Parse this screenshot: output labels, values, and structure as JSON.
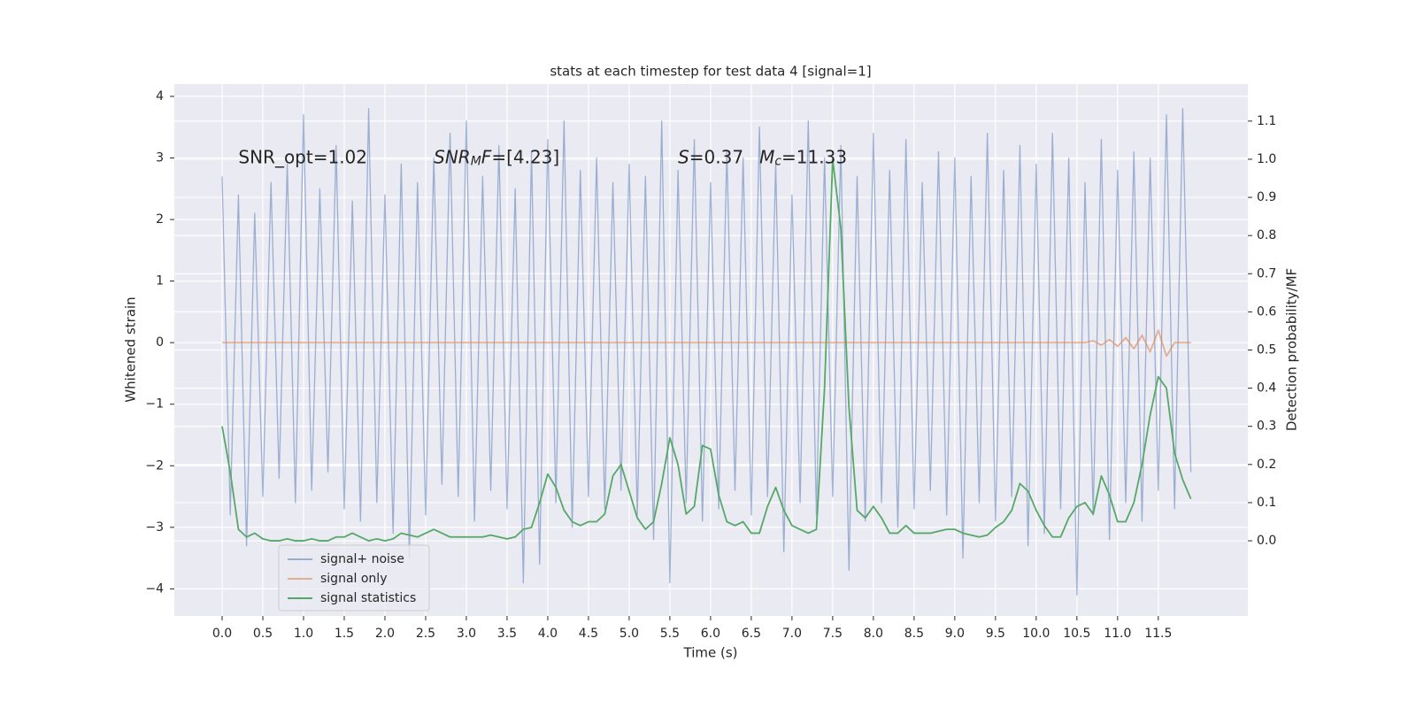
{
  "chart_data": {
    "type": "line",
    "title": "stats at each timestep for test data 4 [signal=1]",
    "xlabel": "Time (s)",
    "ylabel": "Whitened strain",
    "y2label": "Detection probability/MF",
    "xlim": [
      -0.587,
      12.6
    ],
    "ylim": [
      -4.44,
      4.2
    ],
    "y2lim": [
      -0.197,
      1.197
    ],
    "xticks": [
      {
        "value": 0,
        "label": "0.0"
      },
      0.5,
      {
        "value": 1,
        "label": "1.0"
      },
      1.5,
      {
        "value": 2,
        "label": "2.0"
      },
      2.5,
      {
        "value": 3,
        "label": "3.0"
      },
      3.5,
      {
        "value": 4,
        "label": "4.0"
      },
      4.5,
      {
        "value": 5,
        "label": "5.0"
      },
      5.5,
      {
        "value": 6,
        "label": "6.0"
      },
      6.5,
      {
        "value": 7,
        "label": "7.0"
      },
      7.5,
      {
        "value": 8,
        "label": "8.0"
      },
      8.5,
      {
        "value": 9,
        "label": "9.0"
      },
      9.5,
      {
        "value": 10,
        "label": "10.0"
      },
      10.5,
      {
        "value": 11,
        "label": "11.0"
      },
      11.5
    ],
    "yticks": [
      {
        "value": -4,
        "label": "−4"
      },
      {
        "value": -3,
        "label": "−3"
      },
      {
        "value": -2,
        "label": "−2"
      },
      {
        "value": -1,
        "label": "−1"
      },
      0,
      1,
      2,
      3,
      4
    ],
    "y2ticks": [
      {
        "value": 0,
        "label": "0.0"
      },
      0.1,
      0.2,
      0.3,
      0.4,
      0.5,
      0.6,
      0.7,
      0.8,
      0.9,
      {
        "value": 1,
        "label": "1.0"
      },
      1.1
    ],
    "grid": true,
    "legend_loc": "lower left",
    "x": [
      0,
      0.1,
      0.2,
      0.3,
      0.4,
      0.5,
      0.6,
      0.7,
      0.8,
      0.9,
      1,
      1.1,
      1.2,
      1.3,
      1.4,
      1.5,
      1.6,
      1.7,
      1.8,
      1.9,
      2,
      2.1,
      2.2,
      2.3,
      2.4,
      2.5,
      2.6,
      2.7,
      2.8,
      2.9,
      3,
      3.1,
      3.2,
      3.3,
      3.4,
      3.5,
      3.6,
      3.7,
      3.8,
      3.9,
      4,
      4.1,
      4.2,
      4.3,
      4.4,
      4.5,
      4.6,
      4.7,
      4.8,
      4.9,
      5,
      5.1,
      5.2,
      5.3,
      5.4,
      5.5,
      5.6,
      5.7,
      5.8,
      5.9,
      6,
      6.1,
      6.2,
      6.3,
      6.4,
      6.5,
      6.6,
      6.7,
      6.8,
      6.9,
      7,
      7.1,
      7.2,
      7.3,
      7.4,
      7.5,
      7.6,
      7.7,
      7.8,
      7.9,
      8,
      8.1,
      8.2,
      8.3,
      8.4,
      8.5,
      8.6,
      8.7,
      8.8,
      8.9,
      9,
      9.1,
      9.2,
      9.3,
      9.4,
      9.5,
      9.6,
      9.7,
      9.8,
      9.9,
      10,
      10.1,
      10.2,
      10.3,
      10.4,
      10.5,
      10.6,
      10.7,
      10.8,
      10.9,
      11,
      11.1,
      11.2,
      11.3,
      11.4,
      11.5,
      11.6,
      11.7,
      11.8,
      11.9
    ],
    "series": [
      {
        "name": "signal+ noise",
        "color": "#4c72b0",
        "opacity": 0.5,
        "values": [
          2.7,
          -2.8,
          2.4,
          -3.3,
          2.1,
          -2.5,
          2.6,
          -2.2,
          2.9,
          -2.6,
          3.7,
          -2.4,
          2.5,
          -2.1,
          3.2,
          -2.7,
          2.3,
          -2.9,
          3.8,
          -2.6,
          2.4,
          -3.1,
          2.9,
          -3.5,
          2.6,
          -2.8,
          3.0,
          -2.3,
          3.4,
          -2.5,
          3.6,
          -2.9,
          2.7,
          -2.4,
          3.2,
          -2.7,
          2.5,
          -3.9,
          3.1,
          -3.6,
          3.3,
          -2.6,
          3.6,
          -3.0,
          2.8,
          -2.5,
          3.0,
          -2.7,
          2.6,
          -2.4,
          2.9,
          -2.8,
          2.7,
          -3.2,
          3.6,
          -3.9,
          2.8,
          -2.6,
          3.3,
          -2.9,
          2.6,
          -2.7,
          3.1,
          -2.4,
          3.0,
          -2.8,
          3.5,
          -2.5,
          2.9,
          -3.4,
          2.4,
          -2.6,
          3.6,
          -2.8,
          3.0,
          -2.5,
          3.2,
          -3.7,
          2.7,
          -2.9,
          3.4,
          -2.6,
          2.8,
          -3.0,
          3.3,
          -2.7,
          2.6,
          -2.4,
          3.1,
          -2.8,
          3.0,
          -3.5,
          2.7,
          -2.6,
          3.4,
          -2.9,
          2.8,
          -2.5,
          3.2,
          -3.3,
          2.9,
          -3.1,
          3.4,
          -2.7,
          3.0,
          -4.1,
          2.6,
          -2.8,
          3.3,
          -3.2,
          2.8,
          -2.6,
          3.1,
          -2.9,
          3.0,
          -2.4,
          3.7,
          -2.7,
          3.8,
          -2.1
        ]
      },
      {
        "name": "signal only",
        "color": "#dd8452",
        "opacity": 0.6,
        "values": [
          0,
          0,
          0,
          0,
          0,
          0,
          0,
          0,
          0,
          0,
          0,
          0,
          0,
          0,
          0,
          0,
          0,
          0,
          0,
          0,
          0,
          0,
          0,
          0,
          0,
          0,
          0,
          0,
          0,
          0,
          0,
          0,
          0,
          0,
          0,
          0,
          0,
          0,
          0,
          0,
          0,
          0,
          0,
          0,
          0,
          0,
          0,
          0,
          0,
          0,
          0,
          0,
          0,
          0,
          0,
          0,
          0,
          0,
          0,
          0,
          0,
          0,
          0,
          0,
          0,
          0,
          0,
          0,
          0,
          0,
          0,
          0,
          0,
          0,
          0,
          0,
          0,
          0,
          0,
          0,
          0,
          0,
          0,
          0,
          0,
          0,
          0,
          0,
          0,
          0,
          0,
          0,
          0,
          0,
          0,
          0,
          0,
          0,
          0,
          0,
          0,
          0,
          0,
          0,
          0,
          0,
          0,
          0.03,
          -0.04,
          0.05,
          -0.06,
          0.08,
          -0.1,
          0.12,
          -0.15,
          0.2,
          -0.22,
          0,
          0,
          0
        ]
      },
      {
        "name": "signal statistics",
        "color": "#55a868",
        "opacity": 1,
        "axis": "y2",
        "values": [
          0.3,
          0.18,
          0.03,
          0.01,
          0.02,
          0.005,
          0,
          0,
          0.005,
          0,
          0,
          0.005,
          0,
          0,
          0.01,
          0.01,
          0.02,
          0.01,
          0,
          0.005,
          0,
          0.005,
          0.02,
          0.015,
          0.01,
          0.02,
          0.03,
          0.02,
          0.01,
          0.01,
          0.01,
          0.01,
          0.01,
          0.015,
          0.01,
          0.005,
          0.01,
          0.03,
          0.035,
          0.1,
          0.175,
          0.14,
          0.08,
          0.05,
          0.04,
          0.05,
          0.05,
          0.07,
          0.17,
          0.2,
          0.13,
          0.06,
          0.03,
          0.05,
          0.15,
          0.27,
          0.2,
          0.07,
          0.09,
          0.25,
          0.24,
          0.12,
          0.05,
          0.04,
          0.05,
          0.02,
          0.02,
          0.09,
          0.14,
          0.08,
          0.04,
          0.03,
          0.02,
          0.03,
          0.4,
          1.0,
          0.82,
          0.35,
          0.08,
          0.06,
          0.09,
          0.06,
          0.02,
          0.02,
          0.04,
          0.02,
          0.02,
          0.02,
          0.025,
          0.03,
          0.03,
          0.02,
          0.015,
          0.01,
          0.015,
          0.035,
          0.05,
          0.08,
          0.15,
          0.13,
          0.08,
          0.04,
          0.01,
          0.01,
          0.06,
          0.09,
          0.1,
          0.07,
          0.17,
          0.12,
          0.05,
          0.05,
          0.1,
          0.2,
          0.33,
          0.43,
          0.4,
          0.23,
          0.16,
          0.11
        ]
      }
    ],
    "annotations": [
      {
        "x": 0.2,
        "y": 3,
        "runs": [
          {
            "text": "SNR_opt=1.02"
          }
        ]
      },
      {
        "x": 2.6,
        "y": 3,
        "runs": [
          {
            "text": "SNR",
            "style": "italic"
          },
          {
            "text": "M",
            "style": "italic-sub"
          },
          {
            "text": "F",
            "style": "italic"
          },
          {
            "text": "=[4.23]"
          }
        ]
      },
      {
        "x": 5.6,
        "y": 3,
        "runs": [
          {
            "text": "S",
            "style": "italic"
          },
          {
            "text": "=0.37"
          }
        ]
      },
      {
        "x": 6.6,
        "y": 3,
        "runs": [
          {
            "text": "M",
            "style": "italic"
          },
          {
            "text": "c",
            "style": "italic-sub"
          },
          {
            "text": "=11.33"
          }
        ]
      }
    ]
  }
}
